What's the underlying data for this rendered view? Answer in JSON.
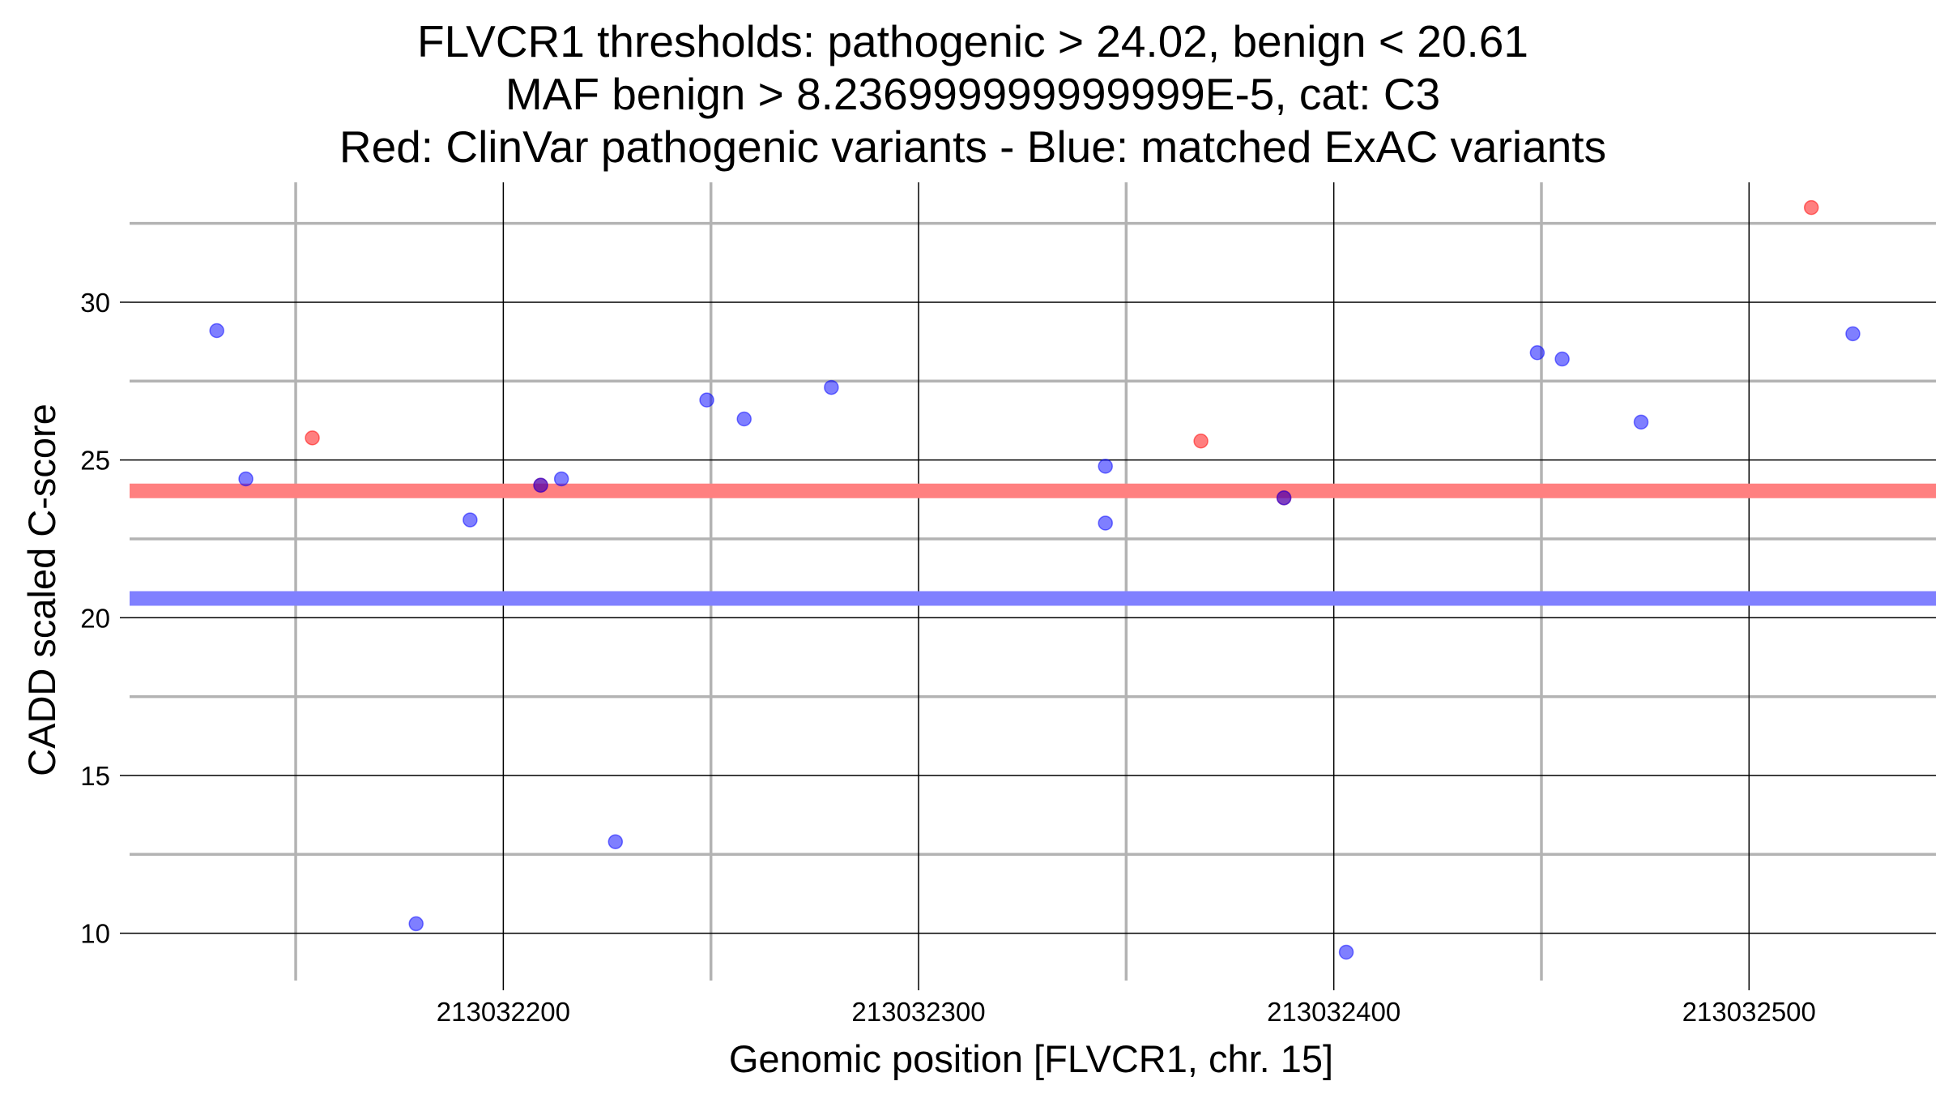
{
  "chart_data": {
    "type": "scatter",
    "title_lines": [
      "FLVCR1 thresholds: pathogenic > 24.02, benign < 20.61",
      "MAF benign > 8.236999999999999E-5, cat: C3",
      "Red: ClinVar pathogenic variants - Blue: matched ExAC variants"
    ],
    "xlabel": "Genomic position [FLVCR1, chr. 15]",
    "ylabel": "CADD scaled C-score",
    "xlim": [
      213032110,
      213032545
    ],
    "ylim": [
      8.5,
      33.8
    ],
    "x_ticks": [
      213032200,
      213032300,
      213032400,
      213032500
    ],
    "x_tick_labels": [
      "213032200",
      "213032300",
      "213032400",
      "213032500"
    ],
    "x_minor_gridlines": [
      213032150,
      213032250,
      213032350,
      213032450
    ],
    "y_ticks": [
      10,
      15,
      20,
      25,
      30
    ],
    "y_tick_labels": [
      "10",
      "15",
      "20",
      "25",
      "30"
    ],
    "y_minor_gridlines": [
      12.5,
      17.5,
      22.5,
      27.5,
      32.5
    ],
    "grid": true,
    "colors": {
      "pathogenic": "#ff0000",
      "benign": "#0000ff",
      "pathogenic_threshold": "#ff8080",
      "benign_threshold": "#8080ff",
      "major_grid": "#000000",
      "minor_grid": "#b3b3b3"
    },
    "thresholds": {
      "pathogenic": 24.02,
      "benign": 20.61
    },
    "series": [
      {
        "key": "pathogenic",
        "points": [
          {
            "x": 213032154,
            "y": 25.7
          },
          {
            "x": 213032209,
            "y": 24.2
          },
          {
            "x": 213032368,
            "y": 25.6
          },
          {
            "x": 213032388,
            "y": 23.8
          },
          {
            "x": 213032515,
            "y": 33.0
          }
        ]
      },
      {
        "key": "benign",
        "points": [
          {
            "x": 213032131,
            "y": 29.1
          },
          {
            "x": 213032138,
            "y": 24.4
          },
          {
            "x": 213032179,
            "y": 10.3
          },
          {
            "x": 213032192,
            "y": 23.1
          },
          {
            "x": 213032209,
            "y": 24.2
          },
          {
            "x": 213032214,
            "y": 24.4
          },
          {
            "x": 213032227,
            "y": 12.9
          },
          {
            "x": 213032249,
            "y": 26.9
          },
          {
            "x": 213032258,
            "y": 26.3
          },
          {
            "x": 213032279,
            "y": 27.3
          },
          {
            "x": 213032345,
            "y": 24.8
          },
          {
            "x": 213032345,
            "y": 23.0
          },
          {
            "x": 213032388,
            "y": 23.8
          },
          {
            "x": 213032403,
            "y": 9.4
          },
          {
            "x": 213032449,
            "y": 28.4
          },
          {
            "x": 213032455,
            "y": 28.2
          },
          {
            "x": 213032474,
            "y": 26.2
          },
          {
            "x": 213032525,
            "y": 29.0
          }
        ]
      }
    ]
  }
}
